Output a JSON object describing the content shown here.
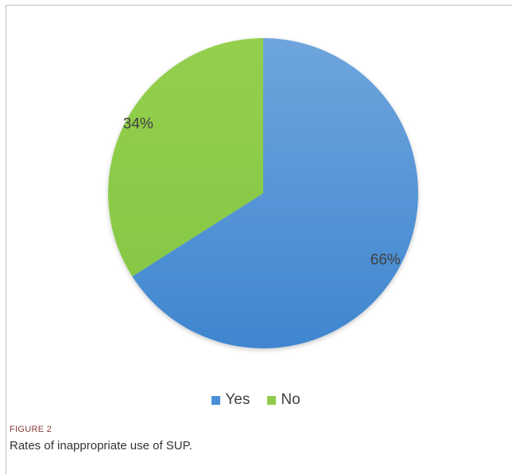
{
  "chart_data": {
    "type": "pie",
    "categories": [
      "Yes",
      "No"
    ],
    "values": [
      66,
      34
    ],
    "labels": [
      "66%",
      "34%"
    ],
    "colors": [
      "#4a8fd6",
      "#8fcc4c"
    ],
    "start": "12 o'clock",
    "direction": "clockwise",
    "legend": "bottom"
  },
  "caption": {
    "label": "FIGURE 2",
    "text": "Rates of inappropriate use of SUP."
  }
}
